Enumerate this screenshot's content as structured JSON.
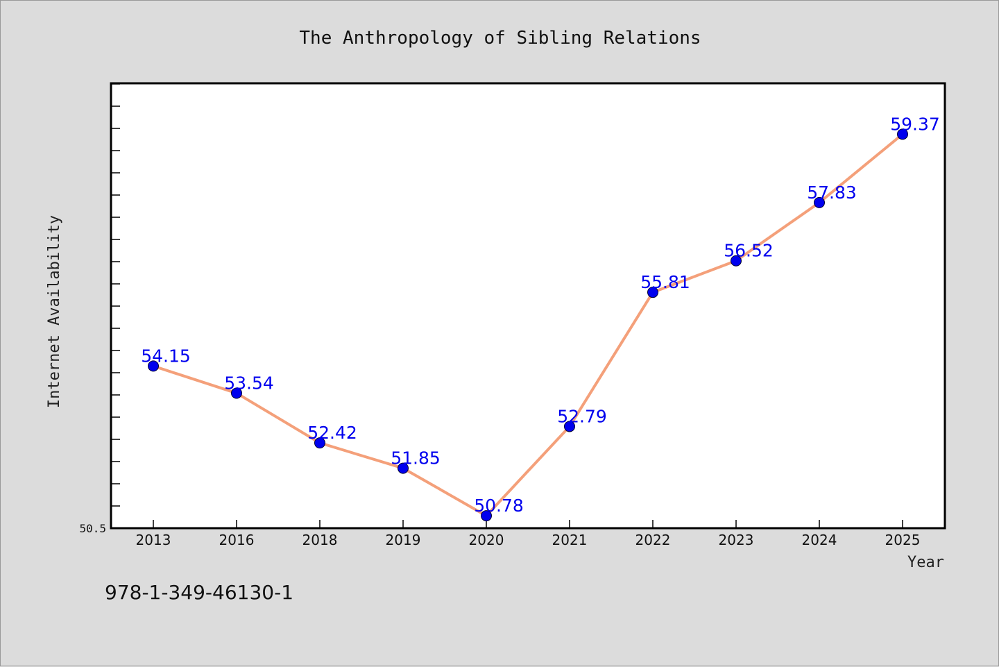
{
  "chart_data": {
    "type": "line",
    "title": "The Anthropology of Sibling Relations",
    "xlabel": "Year",
    "ylabel": "Internet Availability",
    "categories": [
      "2013",
      "2016",
      "2018",
      "2019",
      "2020",
      "2021",
      "2022",
      "2023",
      "2024",
      "2025"
    ],
    "series": [
      {
        "values": [
          54.15,
          53.54,
          52.42,
          51.85,
          50.78,
          52.79,
          55.81,
          56.52,
          57.83,
          59.37
        ],
        "labels": [
          "54.15",
          "53.54",
          "52.42",
          "51.85",
          "50.78",
          "52.79",
          "55.81",
          "56.52",
          "57.83",
          "59.37"
        ],
        "line_color": "#f4a07a",
        "marker_color": "#0000ee"
      }
    ],
    "ylim": [
      50.5,
      60.5
    ],
    "yticks_labeled": [
      "50.5"
    ],
    "grid": false,
    "legend": "none"
  },
  "footer": {
    "code": "978-1-349-46130-1"
  },
  "colors": {
    "background": "#dcdcdc",
    "plot_area": "#ffffff",
    "line": "#f4a07a",
    "marker": "#0000ee",
    "data_label": "#0000ee"
  }
}
